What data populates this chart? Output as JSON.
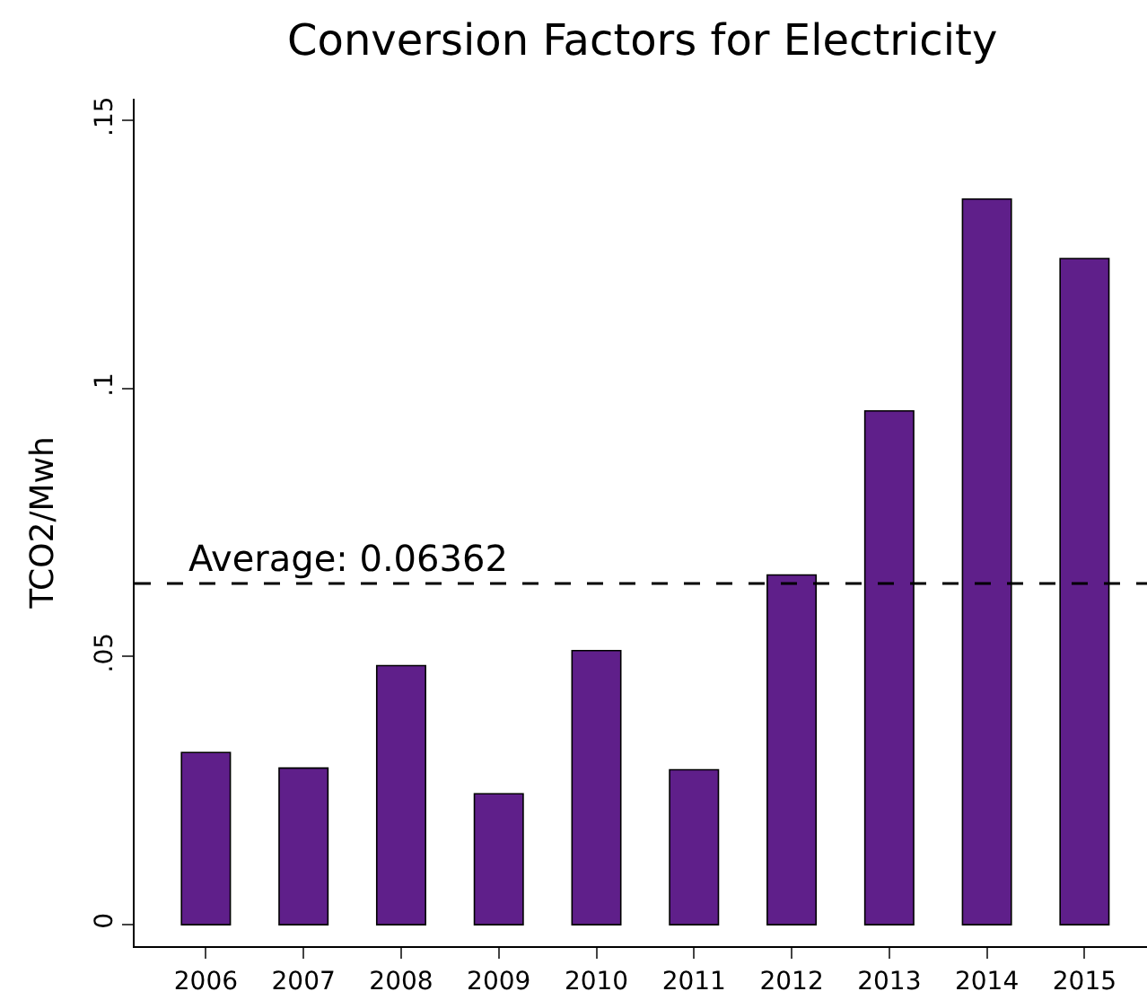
{
  "chart_data": {
    "type": "bar",
    "title": "Conversion Factors for Electricity",
    "ylabel": "TCO2/Mwh",
    "categories": [
      "2006",
      "2007",
      "2008",
      "2009",
      "2010",
      "2011",
      "2012",
      "2013",
      "2014",
      "2015"
    ],
    "values": [
      0.0321,
      0.0292,
      0.0483,
      0.0244,
      0.0511,
      0.0289,
      0.0652,
      0.0958,
      0.1353,
      0.1242
    ],
    "color": "#5f1f8a",
    "ylim": [
      -0.004,
      0.154
    ],
    "yticks": [
      {
        "value": 0,
        "label": "0"
      },
      {
        "value": 0.05,
        "label": ".05"
      },
      {
        "value": 0.1,
        "label": ".1"
      },
      {
        "value": 0.15,
        "label": ".15"
      }
    ],
    "ref_lines": [
      {
        "axis": "y",
        "value": 0.06362,
        "label": "Average: 0.06362",
        "color": "#000000",
        "line_style": "dashed"
      }
    ]
  }
}
